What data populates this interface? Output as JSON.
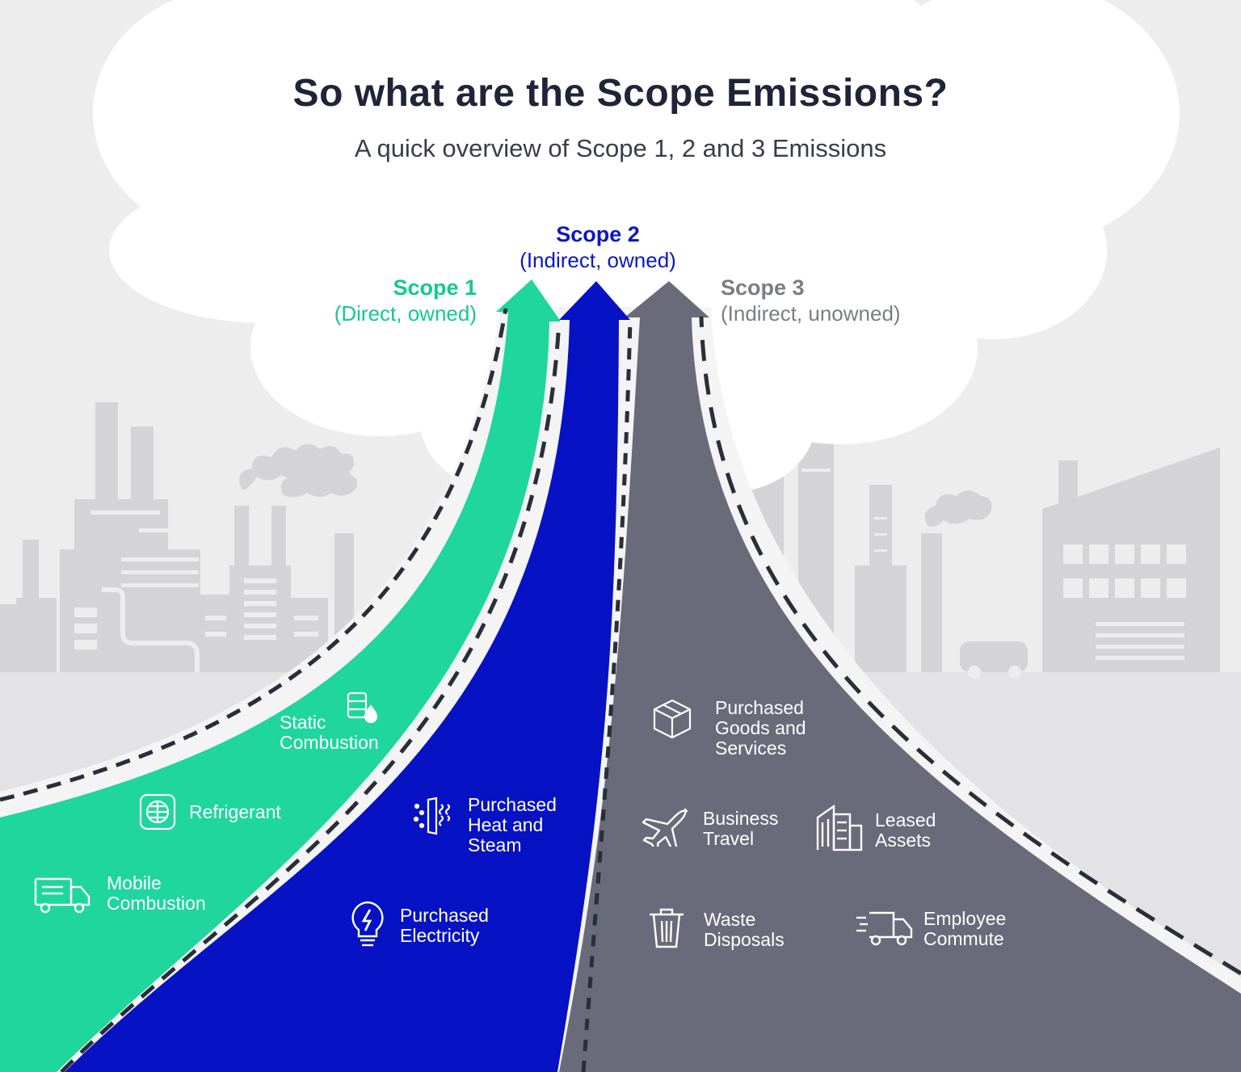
{
  "title": "So what are the Scope Emissions?",
  "subtitle": "A quick overview of Scope 1, 2 and 3 Emissions",
  "colors": {
    "scope1": "#1fd69c",
    "scope2": "#0612c4",
    "scope3": "#6a6b7a",
    "background": "#ededee",
    "factory": "#d4d4d6",
    "cloud": "#ffffff"
  },
  "scope1": {
    "heading": "Scope 1",
    "subheading": "(Direct, owned)",
    "items": [
      {
        "lines": [
          "Static",
          "Combustion"
        ],
        "icon": "fuel-barrel-icon"
      },
      {
        "lines": [
          "Refrigerant"
        ],
        "icon": "refrigerant-icon"
      },
      {
        "lines": [
          "Mobile",
          "Combustion"
        ],
        "icon": "truck-icon"
      }
    ]
  },
  "scope2": {
    "heading": "Scope 2",
    "subheading": "(Indirect, owned)",
    "items": [
      {
        "lines": [
          "Purchased",
          "Heat and",
          "Steam"
        ],
        "icon": "heat-steam-icon"
      },
      {
        "lines": [
          "Purchased",
          "Electricity"
        ],
        "icon": "lightbulb-icon"
      }
    ]
  },
  "scope3": {
    "heading": "Scope 3",
    "subheading": "(Indirect, unowned)",
    "items": [
      {
        "lines": [
          "Purchased",
          "Goods and",
          "Services"
        ],
        "icon": "package-icon"
      },
      {
        "lines": [
          "Business",
          "Travel"
        ],
        "icon": "airplane-icon"
      },
      {
        "lines": [
          "Leased",
          "Assets"
        ],
        "icon": "buildings-icon"
      },
      {
        "lines": [
          "Waste",
          "Disposals"
        ],
        "icon": "trash-icon"
      },
      {
        "lines": [
          "Employee",
          "Commute"
        ],
        "icon": "delivery-van-icon"
      }
    ]
  }
}
